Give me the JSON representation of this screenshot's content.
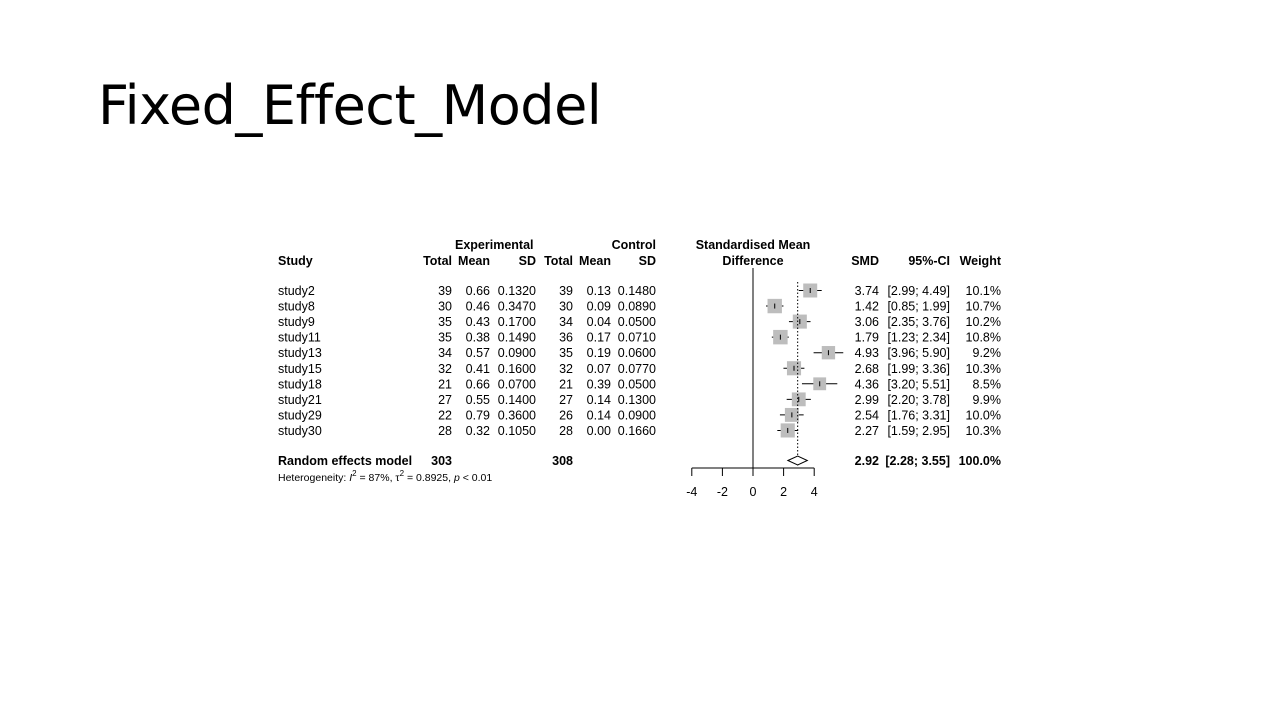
{
  "slide": {
    "title": "Fixed_Effect_Model"
  },
  "chart_data": {
    "type": "forest",
    "headers": {
      "group_experimental": "Experimental",
      "group_control": "Control",
      "smd_title_line1": "Standardised Mean",
      "smd_title_line2": "Difference",
      "study": "Study",
      "e_total": "Total",
      "e_mean": "Mean",
      "e_sd": "SD",
      "c_total": "Total",
      "c_mean": "Mean",
      "c_sd": "SD",
      "smd": "SMD",
      "ci": "95%-CI",
      "weight": "Weight"
    },
    "studies": [
      {
        "study": "study2",
        "e_total": "39",
        "e_mean": "0.66",
        "e_sd": "0.1320",
        "c_total": "39",
        "c_mean": "0.13",
        "c_sd": "0.1480",
        "smd_text": "3.74",
        "ci_text": "[2.99; 4.49]",
        "weight_text": "10.1%",
        "smd": 3.74,
        "lower": 2.99,
        "upper": 4.49,
        "weight": 10.1
      },
      {
        "study": "study8",
        "e_total": "30",
        "e_mean": "0.46",
        "e_sd": "0.3470",
        "c_total": "30",
        "c_mean": "0.09",
        "c_sd": "0.0890",
        "smd_text": "1.42",
        "ci_text": "[0.85; 1.99]",
        "weight_text": "10.7%",
        "smd": 1.42,
        "lower": 0.85,
        "upper": 1.99,
        "weight": 10.7
      },
      {
        "study": "study9",
        "e_total": "35",
        "e_mean": "0.43",
        "e_sd": "0.1700",
        "c_total": "34",
        "c_mean": "0.04",
        "c_sd": "0.0500",
        "smd_text": "3.06",
        "ci_text": "[2.35; 3.76]",
        "weight_text": "10.2%",
        "smd": 3.06,
        "lower": 2.35,
        "upper": 3.76,
        "weight": 10.2
      },
      {
        "study": "study11",
        "e_total": "35",
        "e_mean": "0.38",
        "e_sd": "0.1490",
        "c_total": "36",
        "c_mean": "0.17",
        "c_sd": "0.0710",
        "smd_text": "1.79",
        "ci_text": "[1.23; 2.34]",
        "weight_text": "10.8%",
        "smd": 1.79,
        "lower": 1.23,
        "upper": 2.34,
        "weight": 10.8
      },
      {
        "study": "study13",
        "e_total": "34",
        "e_mean": "0.57",
        "e_sd": "0.0900",
        "c_total": "35",
        "c_mean": "0.19",
        "c_sd": "0.0600",
        "smd_text": "4.93",
        "ci_text": "[3.96; 5.90]",
        "weight_text": "9.2%",
        "smd": 4.93,
        "lower": 3.96,
        "upper": 5.9,
        "weight": 9.2
      },
      {
        "study": "study15",
        "e_total": "32",
        "e_mean": "0.41",
        "e_sd": "0.1600",
        "c_total": "32",
        "c_mean": "0.07",
        "c_sd": "0.0770",
        "smd_text": "2.68",
        "ci_text": "[1.99; 3.36]",
        "weight_text": "10.3%",
        "smd": 2.68,
        "lower": 1.99,
        "upper": 3.36,
        "weight": 10.3
      },
      {
        "study": "study18",
        "e_total": "21",
        "e_mean": "0.66",
        "e_sd": "0.0700",
        "c_total": "21",
        "c_mean": "0.39",
        "c_sd": "0.0500",
        "smd_text": "4.36",
        "ci_text": "[3.20; 5.51]",
        "weight_text": "8.5%",
        "smd": 4.36,
        "lower": 3.2,
        "upper": 5.51,
        "weight": 8.5
      },
      {
        "study": "study21",
        "e_total": "27",
        "e_mean": "0.55",
        "e_sd": "0.1400",
        "c_total": "27",
        "c_mean": "0.14",
        "c_sd": "0.1300",
        "smd_text": "2.99",
        "ci_text": "[2.20; 3.78]",
        "weight_text": "9.9%",
        "smd": 2.99,
        "lower": 2.2,
        "upper": 3.78,
        "weight": 9.9
      },
      {
        "study": "study29",
        "e_total": "22",
        "e_mean": "0.79",
        "e_sd": "0.3600",
        "c_total": "26",
        "c_mean": "0.14",
        "c_sd": "0.0900",
        "smd_text": "2.54",
        "ci_text": "[1.76; 3.31]",
        "weight_text": "10.0%",
        "smd": 2.54,
        "lower": 1.76,
        "upper": 3.31,
        "weight": 10.0
      },
      {
        "study": "study30",
        "e_total": "28",
        "e_mean": "0.32",
        "e_sd": "0.1050",
        "c_total": "28",
        "c_mean": "0.00",
        "c_sd": "0.1660",
        "smd_text": "2.27",
        "ci_text": "[1.59; 2.95]",
        "weight_text": "10.3%",
        "smd": 2.27,
        "lower": 1.59,
        "upper": 2.95,
        "weight": 10.3
      }
    ],
    "pooled": {
      "label": "Random effects model",
      "e_total": "303",
      "c_total": "308",
      "smd_text": "2.92",
      "ci_text": "[2.28; 3.55]",
      "weight_text": "100.0%",
      "smd": 2.92,
      "lower": 2.28,
      "upper": 3.55
    },
    "heterogeneity": {
      "prefix": "Heterogeneity: ",
      "i2_symbol": "I",
      "i2_value": " = 87%, ",
      "tau2_symbol": "τ",
      "tau2_value": " = 0.8925, ",
      "p_symbol": "p",
      "p_value": " < 0.01",
      "superscript": "2"
    },
    "x_axis": {
      "ticks": [
        -4,
        -2,
        0,
        2,
        4
      ],
      "range": [
        -4,
        4
      ],
      "null_line": 0
    }
  }
}
